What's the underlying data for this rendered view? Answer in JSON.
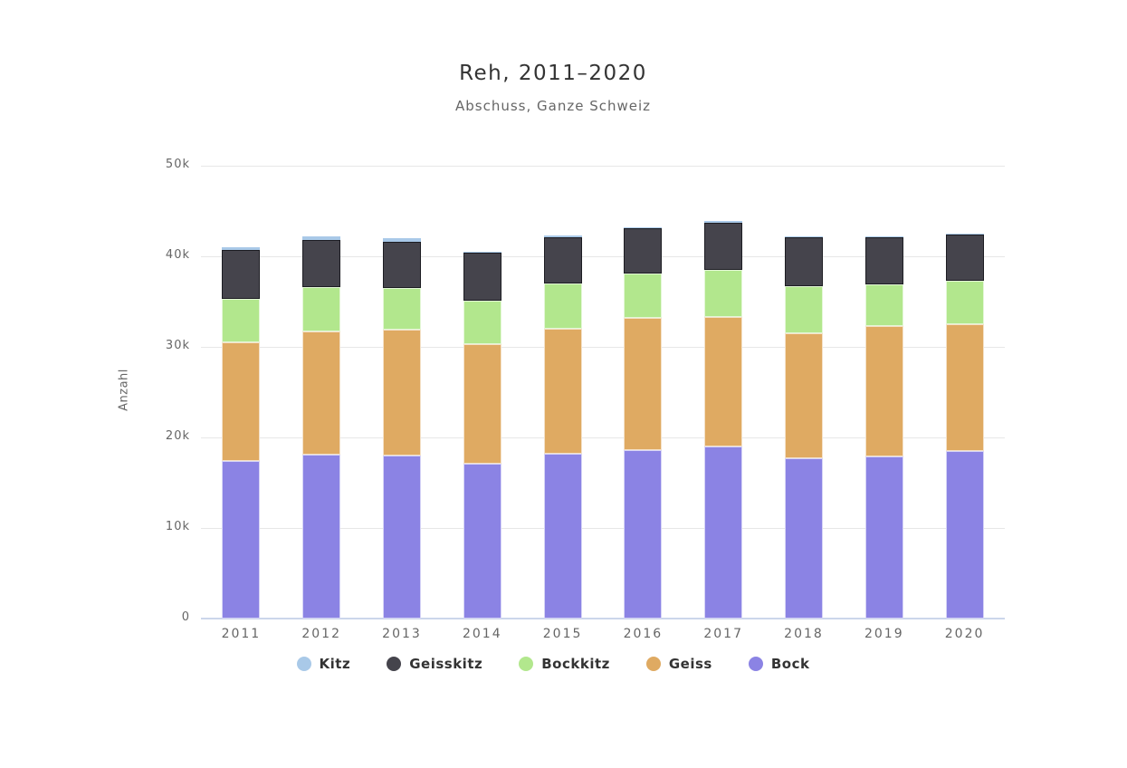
{
  "chart_data": {
    "type": "bar",
    "stacked": true,
    "title": "Reh, 2011–2020",
    "subtitle": "Abschuss, Ganze Schweiz",
    "xlabel": "",
    "ylabel": "Anzahl",
    "ylim": [
      0,
      50000
    ],
    "grid": true,
    "legend_position": "bottom",
    "y_tick_labels": [
      "0",
      "10k",
      "20k",
      "30k",
      "40k",
      "50k"
    ],
    "y_tick_values": [
      0,
      10000,
      20000,
      30000,
      40000,
      50000
    ],
    "categories": [
      "2011",
      "2012",
      "2013",
      "2014",
      "2015",
      "2016",
      "2017",
      "2018",
      "2019",
      "2020"
    ],
    "series": [
      {
        "name": "Bock",
        "color": "#8b83e4",
        "values": [
          17450,
          18150,
          18000,
          17100,
          18250,
          18650,
          19000,
          17700,
          17900,
          18500
        ]
      },
      {
        "name": "Geiss",
        "color": "#dfaa62",
        "values": [
          13100,
          13600,
          13900,
          13200,
          13800,
          14550,
          14300,
          13800,
          14400,
          14000
        ]
      },
      {
        "name": "Bockkitz",
        "color": "#b2e78d",
        "values": [
          4800,
          4900,
          4600,
          4800,
          5000,
          4900,
          5200,
          5200,
          4600,
          4800
        ]
      },
      {
        "name": "Geisskitz",
        "color": "#45444c",
        "values": [
          5400,
          5200,
          5100,
          5300,
          5100,
          5000,
          5200,
          5400,
          5200,
          5100
        ]
      },
      {
        "name": "Kitz",
        "color": "#a9c9e8",
        "values": [
          250,
          400,
          450,
          150,
          150,
          150,
          200,
          150,
          150,
          150
        ]
      }
    ],
    "legend_order": [
      "Kitz",
      "Geisskitz",
      "Bockkitz",
      "Geiss",
      "Bock"
    ]
  },
  "theme": {
    "background": "#ffffff",
    "gridline_color": "#e7e7e7",
    "axis_line_color": "#ccd6eb",
    "label_color": "#666666",
    "title_color": "#333333",
    "legend_text_color": "#333333"
  }
}
